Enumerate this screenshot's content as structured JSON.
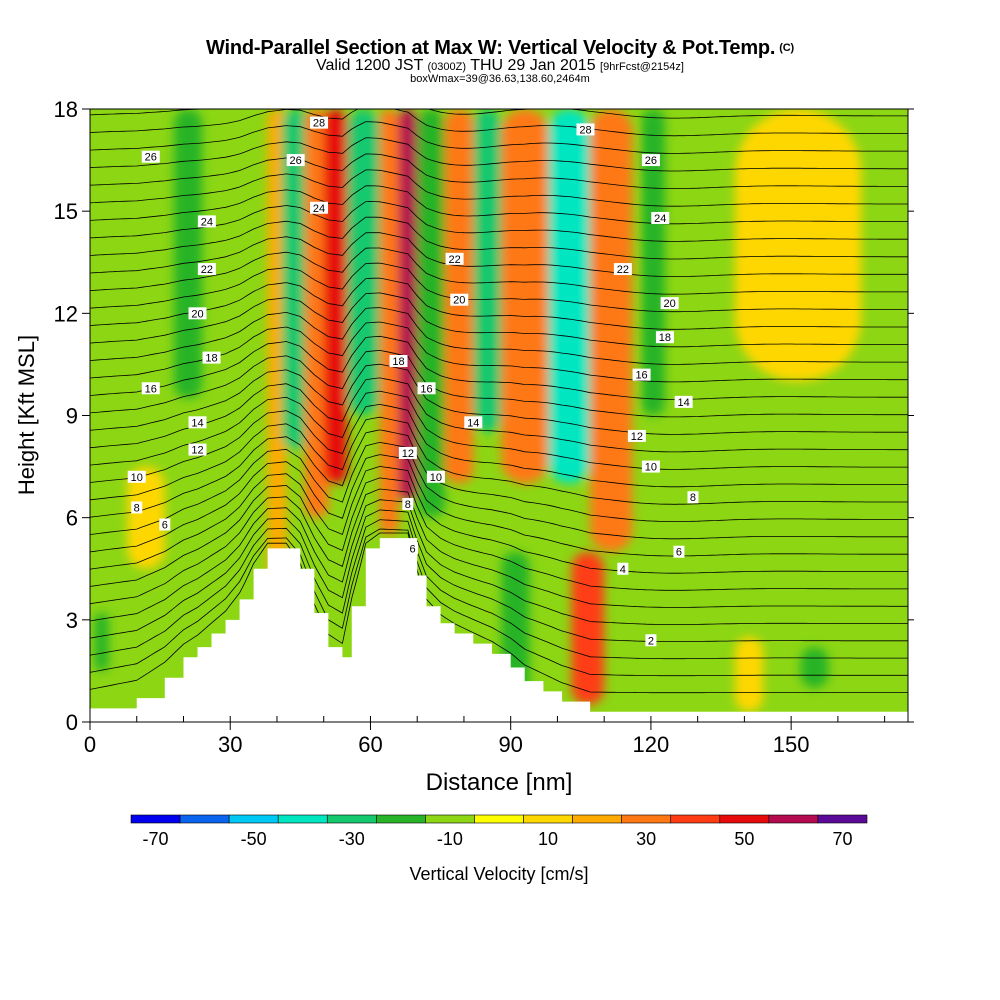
{
  "header": {
    "title": "Wind-Parallel Section at Max W: Vertical Velocity & Pot.Temp.",
    "copyright": "(C)",
    "valid_prefix": "Valid 1200 JST",
    "valid_utc": "(0300Z)",
    "valid_date": "THU 29 Jan 2015",
    "forecast": "[9hrFcst@2154z]",
    "box_info": "boxWmax=39@36.63,138.60,2464m"
  },
  "chart_data": {
    "type": "heatmap",
    "xlabel": "Distance [nm]",
    "ylabel": "Height [Kft MSL]",
    "xlim": [
      0,
      175
    ],
    "ylim": [
      0,
      18
    ],
    "x_ticks": [
      0,
      30,
      60,
      90,
      120,
      150
    ],
    "y_ticks": [
      0,
      3,
      6,
      9,
      12,
      15,
      18
    ],
    "colorbar": {
      "label": "Vertical Velocity [cm/s]",
      "tick_labels": [
        -70,
        -50,
        -30,
        -10,
        10,
        30,
        50,
        70
      ],
      "boundaries": [
        -75,
        -65,
        -55,
        -45,
        -35,
        -25,
        -15,
        -5,
        5,
        15,
        25,
        35,
        45,
        55,
        65,
        75
      ],
      "colors": [
        "#0000ee",
        "#0a64f0",
        "#00c8f5",
        "#00e6c0",
        "#14c86e",
        "#28b428",
        "#8cd614",
        "#ffff00",
        "#ffd700",
        "#ffaa00",
        "#ff7814",
        "#ff3c14",
        "#e60a0a",
        "#b40a50",
        "#5a0a96"
      ]
    },
    "theta_contour_labels": [
      2,
      4,
      6,
      8,
      10,
      12,
      14,
      16,
      18,
      20,
      22,
      24,
      26,
      28
    ],
    "theta_labels": [
      {
        "x": 13,
        "y": 16.6,
        "v": "26"
      },
      {
        "x": 25,
        "y": 14.7,
        "v": "24"
      },
      {
        "x": 25,
        "y": 13.3,
        "v": "22"
      },
      {
        "x": 23,
        "y": 12.0,
        "v": "20"
      },
      {
        "x": 26,
        "y": 10.7,
        "v": "18"
      },
      {
        "x": 13,
        "y": 9.8,
        "v": "16"
      },
      {
        "x": 23,
        "y": 8.8,
        "v": "14"
      },
      {
        "x": 23,
        "y": 8.0,
        "v": "12"
      },
      {
        "x": 10,
        "y": 7.2,
        "v": "10"
      },
      {
        "x": 10,
        "y": 6.3,
        "v": "8"
      },
      {
        "x": 16,
        "y": 5.8,
        "v": "6"
      },
      {
        "x": 49,
        "y": 17.6,
        "v": "28"
      },
      {
        "x": 44,
        "y": 16.5,
        "v": "26"
      },
      {
        "x": 49,
        "y": 15.1,
        "v": "24"
      },
      {
        "x": 78,
        "y": 13.6,
        "v": "22"
      },
      {
        "x": 79,
        "y": 12.4,
        "v": "20"
      },
      {
        "x": 66,
        "y": 10.6,
        "v": "18"
      },
      {
        "x": 72,
        "y": 9.8,
        "v": "16"
      },
      {
        "x": 82,
        "y": 8.8,
        "v": "14"
      },
      {
        "x": 68,
        "y": 7.9,
        "v": "12"
      },
      {
        "x": 74,
        "y": 7.2,
        "v": "10"
      },
      {
        "x": 68,
        "y": 6.4,
        "v": "8"
      },
      {
        "x": 69,
        "y": 5.1,
        "v": "6"
      },
      {
        "x": 106,
        "y": 17.4,
        "v": "28"
      },
      {
        "x": 120,
        "y": 16.5,
        "v": "26"
      },
      {
        "x": 122,
        "y": 14.8,
        "v": "24"
      },
      {
        "x": 114,
        "y": 13.3,
        "v": "22"
      },
      {
        "x": 124,
        "y": 12.3,
        "v": "20"
      },
      {
        "x": 123,
        "y": 11.3,
        "v": "18"
      },
      {
        "x": 118,
        "y": 10.2,
        "v": "16"
      },
      {
        "x": 127,
        "y": 9.4,
        "v": "14"
      },
      {
        "x": 117,
        "y": 8.4,
        "v": "12"
      },
      {
        "x": 120,
        "y": 7.5,
        "v": "10"
      },
      {
        "x": 129,
        "y": 6.6,
        "v": "8"
      },
      {
        "x": 126,
        "y": 5.0,
        "v": "6"
      },
      {
        "x": 114,
        "y": 4.5,
        "v": "4"
      },
      {
        "x": 120,
        "y": 2.4,
        "v": "2"
      }
    ],
    "vertical_velocity_bands": [
      {
        "x0": 18,
        "x1": 24,
        "y0": 9.5,
        "y1": 18,
        "w": -20
      },
      {
        "x0": 38,
        "x1": 42,
        "y0": 3,
        "y1": 18,
        "w": 20
      },
      {
        "x0": 41,
        "x1": 47,
        "y0": 8,
        "y1": 18,
        "w": -35
      },
      {
        "x0": 46,
        "x1": 51,
        "y0": 6,
        "y1": 18,
        "w": 30
      },
      {
        "x0": 50,
        "x1": 55,
        "y0": 7,
        "y1": 18,
        "w": 50
      },
      {
        "x0": 55,
        "x1": 62,
        "y0": 9,
        "y1": 18,
        "w": -35
      },
      {
        "x0": 62,
        "x1": 66,
        "y0": 5.5,
        "y1": 18,
        "w": 30
      },
      {
        "x0": 66,
        "x1": 70,
        "y0": 6.5,
        "y1": 18,
        "w": 55
      },
      {
        "x0": 70,
        "x1": 76,
        "y0": 6,
        "y1": 18,
        "w": -20
      },
      {
        "x0": 76,
        "x1": 82,
        "y0": 7,
        "y1": 18,
        "w": 25
      },
      {
        "x0": 82,
        "x1": 88,
        "y0": 8.5,
        "y1": 18,
        "w": -35
      },
      {
        "x0": 88,
        "x1": 98,
        "y0": 7,
        "y1": 18,
        "w": 30
      },
      {
        "x0": 98,
        "x1": 107,
        "y0": 7,
        "y1": 18,
        "w": -40
      },
      {
        "x0": 107,
        "x1": 116,
        "y0": 5,
        "y1": 18,
        "w": 25
      },
      {
        "x0": 118,
        "x1": 123,
        "y0": 9,
        "y1": 18,
        "w": -20
      },
      {
        "x0": 138,
        "x1": 165,
        "y0": 10,
        "y1": 18,
        "w": 10
      },
      {
        "x0": 103,
        "x1": 110,
        "y0": 0.5,
        "y1": 5,
        "w": 35
      },
      {
        "x0": 88,
        "x1": 94,
        "y0": 0.5,
        "y1": 5,
        "w": -25
      },
      {
        "x0": 152,
        "x1": 158,
        "y0": 1,
        "y1": 2.2,
        "w": -20
      },
      {
        "x0": 138,
        "x1": 144,
        "y0": 0.3,
        "y1": 2.5,
        "w": 10
      },
      {
        "x0": 1,
        "x1": 4,
        "y0": 1.5,
        "y1": 3.2,
        "w": -20
      },
      {
        "x0": 8,
        "x1": 16,
        "y0": 4.5,
        "y1": 7.5,
        "w": 10
      }
    ],
    "terrain": [
      {
        "x": 0,
        "h": 0.4
      },
      {
        "x": 10,
        "h": 0.7
      },
      {
        "x": 16,
        "h": 1.3
      },
      {
        "x": 20,
        "h": 1.9
      },
      {
        "x": 23,
        "h": 2.2
      },
      {
        "x": 26,
        "h": 2.6
      },
      {
        "x": 29,
        "h": 3.0
      },
      {
        "x": 32,
        "h": 3.6
      },
      {
        "x": 35,
        "h": 4.5
      },
      {
        "x": 38,
        "h": 5.1
      },
      {
        "x": 42,
        "h": 5.1
      },
      {
        "x": 45,
        "h": 4.5
      },
      {
        "x": 48,
        "h": 3.2
      },
      {
        "x": 51,
        "h": 2.2
      },
      {
        "x": 54,
        "h": 1.9
      },
      {
        "x": 56,
        "h": 3.4
      },
      {
        "x": 59,
        "h": 5.1
      },
      {
        "x": 62,
        "h": 5.4
      },
      {
        "x": 68,
        "h": 5.4
      },
      {
        "x": 70,
        "h": 4.3
      },
      {
        "x": 72,
        "h": 3.4
      },
      {
        "x": 75,
        "h": 2.9
      },
      {
        "x": 78,
        "h": 2.6
      },
      {
        "x": 82,
        "h": 2.3
      },
      {
        "x": 86,
        "h": 2.0
      },
      {
        "x": 90,
        "h": 1.6
      },
      {
        "x": 93,
        "h": 1.2
      },
      {
        "x": 97,
        "h": 0.9
      },
      {
        "x": 101,
        "h": 0.6
      },
      {
        "x": 107,
        "h": 0.3
      },
      {
        "x": 110,
        "h": 0.3
      }
    ]
  }
}
